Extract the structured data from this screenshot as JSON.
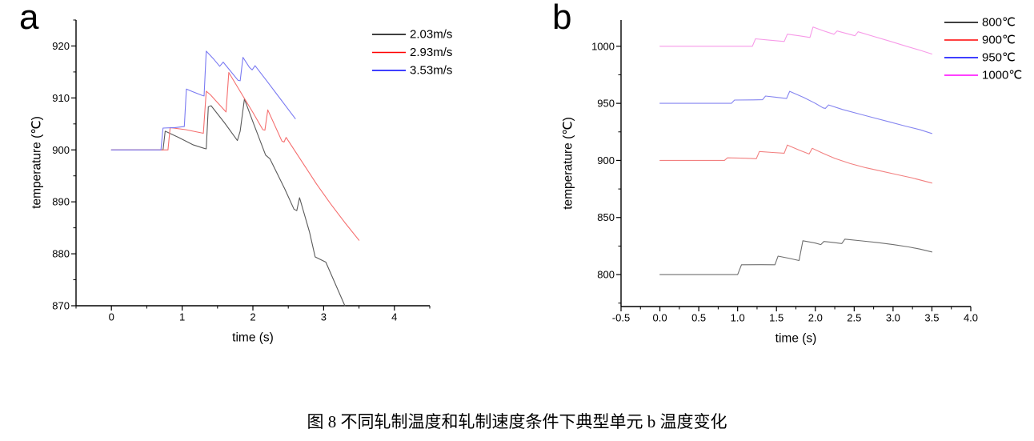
{
  "figure_caption": "图 8 不同轧制温度和轧制速度条件下典型单元 b 温度变化",
  "chart_data": [
    {
      "type": "line",
      "panel_label": "a",
      "xlabel": "time (s)",
      "ylabel": "temperature (℃)",
      "xlim": [
        -0.5,
        4.5
      ],
      "ylim": [
        870,
        925
      ],
      "xticks": [
        0,
        1,
        2,
        3,
        4
      ],
      "xtick_labels": [
        "0",
        "1",
        "2",
        "3",
        "4"
      ],
      "yticks": [
        870,
        880,
        890,
        900,
        910,
        920
      ],
      "ytick_labels": [
        "870",
        "880",
        "890",
        "900",
        "910",
        "920"
      ],
      "x_minor_step": 0.5,
      "y_minor_step": 5,
      "grid": false,
      "legend_position": "top-right-inside",
      "series": [
        {
          "name": "2.03m/s",
          "color": "#000000",
          "line_color": "#5a5a5a",
          "points": [
            [
              0,
              900
            ],
            [
              0.73,
              900
            ],
            [
              0.76,
              903.6
            ],
            [
              0.95,
              902.4
            ],
            [
              1.15,
              901.0
            ],
            [
              1.31,
              900.3
            ],
            [
              1.34,
              900.2
            ],
            [
              1.37,
              908.3
            ],
            [
              1.41,
              908.5
            ],
            [
              1.6,
              905.2
            ],
            [
              1.78,
              901.8
            ],
            [
              1.82,
              903.6
            ],
            [
              1.88,
              909.8
            ],
            [
              2.0,
              905.4
            ],
            [
              2.18,
              899.0
            ],
            [
              2.24,
              898.3
            ],
            [
              2.45,
              892.5
            ],
            [
              2.58,
              888.6
            ],
            [
              2.62,
              888.3
            ],
            [
              2.66,
              890.8
            ],
            [
              2.8,
              884.2
            ],
            [
              2.88,
              879.4
            ],
            [
              2.97,
              878.8
            ],
            [
              3.03,
              878.4
            ],
            [
              3.3,
              870
            ]
          ]
        },
        {
          "name": "2.93m/s",
          "color": "#ff0000",
          "line_color": "#f56e6e",
          "points": [
            [
              0,
              900
            ],
            [
              0.8,
              900
            ],
            [
              0.83,
              904.3
            ],
            [
              1.05,
              903.9
            ],
            [
              1.3,
              903.2
            ],
            [
              1.34,
              911.3
            ],
            [
              1.4,
              910.6
            ],
            [
              1.62,
              907.3
            ],
            [
              1.66,
              914.9
            ],
            [
              1.85,
              910.6
            ],
            [
              2.0,
              907.2
            ],
            [
              2.14,
              903.9
            ],
            [
              2.17,
              903.8
            ],
            [
              2.21,
              907.7
            ],
            [
              2.41,
              901.7
            ],
            [
              2.44,
              901.5
            ],
            [
              2.47,
              902.4
            ],
            [
              2.7,
              897.6
            ],
            [
              2.9,
              893.4
            ],
            [
              3.1,
              889.6
            ],
            [
              3.3,
              886.0
            ],
            [
              3.5,
              882.6
            ]
          ]
        },
        {
          "name": "3.53m/s",
          "color": "#0000ff",
          "line_color": "#7a7af2",
          "points": [
            [
              0,
              900
            ],
            [
              0.7,
              900
            ],
            [
              0.73,
              904.2
            ],
            [
              0.9,
              904.3
            ],
            [
              1.03,
              904.5
            ],
            [
              1.06,
              911.7
            ],
            [
              1.15,
              911.2
            ],
            [
              1.28,
              910.5
            ],
            [
              1.31,
              910.4
            ],
            [
              1.34,
              919.0
            ],
            [
              1.45,
              917.4
            ],
            [
              1.53,
              916.1
            ],
            [
              1.58,
              916.9
            ],
            [
              1.7,
              914.9
            ],
            [
              1.79,
              913.4
            ],
            [
              1.82,
              913.3
            ],
            [
              1.86,
              917.8
            ],
            [
              1.95,
              915.9
            ],
            [
              1.99,
              915.4
            ],
            [
              2.03,
              916.2
            ],
            [
              2.2,
              913.2
            ],
            [
              2.4,
              909.6
            ],
            [
              2.6,
              906.0
            ]
          ]
        }
      ]
    },
    {
      "type": "line",
      "panel_label": "b",
      "xlabel": "time (s)",
      "ylabel": "temperature (℃)",
      "xlim": [
        -0.5,
        4.0
      ],
      "ylim": [
        772,
        1023
      ],
      "xticks": [
        -0.5,
        0.0,
        0.5,
        1.0,
        1.5,
        2.0,
        2.5,
        3.0,
        3.5,
        4.0
      ],
      "xtick_labels": [
        "-0.5",
        "0.0",
        "0.5",
        "1.0",
        "1.5",
        "2.0",
        "2.5",
        "3.0",
        "3.5",
        "4.0"
      ],
      "yticks": [
        800,
        850,
        900,
        950,
        1000
      ],
      "ytick_labels": [
        "800",
        "850",
        "900",
        "950",
        "1000"
      ],
      "x_minor_step": 0.25,
      "y_minor_step": 25,
      "grid": false,
      "legend_position": "top-right-inside",
      "series": [
        {
          "name": "800℃",
          "color": "#000000",
          "line_color": "#6e6e6e",
          "points": [
            [
              0,
              800
            ],
            [
              1.0,
              800
            ],
            [
              1.05,
              808.6
            ],
            [
              1.3,
              808.7
            ],
            [
              1.48,
              808.6
            ],
            [
              1.52,
              816.2
            ],
            [
              1.65,
              814.4
            ],
            [
              1.79,
              812.3
            ],
            [
              1.84,
              829.6
            ],
            [
              2.0,
              827.6
            ],
            [
              2.07,
              826.3
            ],
            [
              2.11,
              829.0
            ],
            [
              2.22,
              828.2
            ],
            [
              2.34,
              827.2
            ],
            [
              2.38,
              831.0
            ],
            [
              2.6,
              829.5
            ],
            [
              2.8,
              828.0
            ],
            [
              3.0,
              826.3
            ],
            [
              3.2,
              824.2
            ],
            [
              3.35,
              822.3
            ],
            [
              3.5,
              819.8
            ]
          ]
        },
        {
          "name": "900℃",
          "color": "#ff0000",
          "line_color": "#f28080",
          "points": [
            [
              0,
              900
            ],
            [
              0.83,
              900
            ],
            [
              0.87,
              902.3
            ],
            [
              1.1,
              901.9
            ],
            [
              1.24,
              901.5
            ],
            [
              1.28,
              907.8
            ],
            [
              1.45,
              907.0
            ],
            [
              1.6,
              906.3
            ],
            [
              1.64,
              913.5
            ],
            [
              1.8,
              908.8
            ],
            [
              1.92,
              905.6
            ],
            [
              1.96,
              910.6
            ],
            [
              2.1,
              906.2
            ],
            [
              2.25,
              901.8
            ],
            [
              2.45,
              897.2
            ],
            [
              2.65,
              893.6
            ],
            [
              2.85,
              890.6
            ],
            [
              3.05,
              887.6
            ],
            [
              3.25,
              884.6
            ],
            [
              3.5,
              880.2
            ]
          ]
        },
        {
          "name": "950℃",
          "color": "#0000ff",
          "line_color": "#8585f0",
          "points": [
            [
              0,
              950
            ],
            [
              0.92,
              950
            ],
            [
              0.96,
              952.9
            ],
            [
              1.2,
              953.0
            ],
            [
              1.32,
              953.2
            ],
            [
              1.36,
              956.4
            ],
            [
              1.5,
              955.3
            ],
            [
              1.63,
              954.2
            ],
            [
              1.67,
              960.5
            ],
            [
              1.85,
              955.2
            ],
            [
              2.0,
              950.0
            ],
            [
              2.1,
              946.0
            ],
            [
              2.13,
              945.6
            ],
            [
              2.17,
              948.6
            ],
            [
              2.35,
              944.6
            ],
            [
              2.55,
              941.0
            ],
            [
              2.75,
              937.4
            ],
            [
              2.95,
              933.8
            ],
            [
              3.15,
              930.2
            ],
            [
              3.35,
              926.8
            ],
            [
              3.5,
              923.6
            ]
          ]
        },
        {
          "name": "1000℃",
          "color": "#ff00ff",
          "line_color": "#f79ae8",
          "points": [
            [
              0,
              1000
            ],
            [
              1.19,
              1000
            ],
            [
              1.23,
              1006.5
            ],
            [
              1.4,
              1005.4
            ],
            [
              1.6,
              1004.2
            ],
            [
              1.64,
              1010.6
            ],
            [
              1.8,
              1009.1
            ],
            [
              1.93,
              1007.7
            ],
            [
              1.97,
              1016.8
            ],
            [
              2.1,
              1013.6
            ],
            [
              2.24,
              1010.5
            ],
            [
              2.28,
              1013.4
            ],
            [
              2.4,
              1011.2
            ],
            [
              2.51,
              1009.2
            ],
            [
              2.55,
              1012.7
            ],
            [
              2.75,
              1008.6
            ],
            [
              2.95,
              1004.6
            ],
            [
              3.15,
              1000.4
            ],
            [
              3.35,
              996.4
            ],
            [
              3.5,
              993.2
            ]
          ]
        }
      ]
    }
  ]
}
